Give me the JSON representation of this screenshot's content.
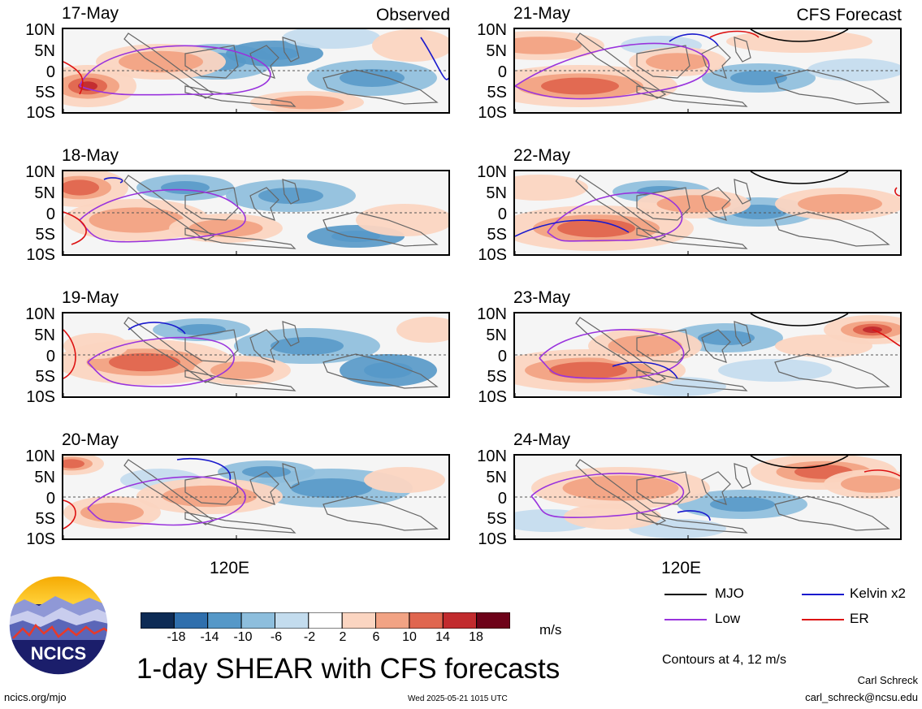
{
  "headers": {
    "observed": "Observed",
    "forecast": "CFS Forecast"
  },
  "lat_labels": [
    "10N",
    "5N",
    "0",
    "5S",
    "10S"
  ],
  "lon_label": "120E",
  "panels_left": [
    {
      "date": "17-May"
    },
    {
      "date": "18-May"
    },
    {
      "date": "19-May"
    },
    {
      "date": "20-May"
    }
  ],
  "panels_right": [
    {
      "date": "21-May"
    },
    {
      "date": "22-May"
    },
    {
      "date": "23-May"
    },
    {
      "date": "24-May"
    }
  ],
  "colorbar": {
    "ticks": [
      "-18",
      "-14",
      "-10",
      "-6",
      "-2",
      "2",
      "6",
      "10",
      "14",
      "18"
    ],
    "colors": [
      "#0d2b55",
      "#2f6fad",
      "#5598c8",
      "#8dbedd",
      "#c3dcee",
      "#ffffff",
      "#fbd5c1",
      "#f2a384",
      "#e0664f",
      "#c22b2e",
      "#6e0219"
    ],
    "unit": "m/s"
  },
  "legend": {
    "items": [
      {
        "label": "MJO",
        "color": "#000000"
      },
      {
        "label": "Kelvin x2",
        "color": "#1a1acd"
      },
      {
        "label": "Low",
        "color": "#9933dd"
      },
      {
        "label": "ER",
        "color": "#dd1111"
      }
    ],
    "contours_note": "Contours at 4, 12 m/s"
  },
  "logo_text": "NCICS",
  "title": "1-day SHEAR with CFS forecasts",
  "footer": {
    "url": "ncics.org/mjo",
    "timestamp": "Wed 2025-05-21 1015 UTC",
    "author": "Carl Schreck",
    "email": "carl_schreck@ncsu.edu"
  }
}
